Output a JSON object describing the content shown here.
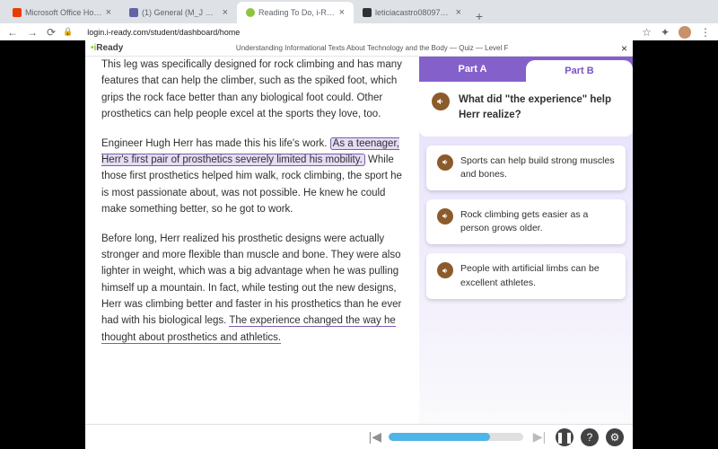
{
  "browser": {
    "tabs": [
      {
        "title": "Microsoft Office Home",
        "icon_color": "#eb3c00",
        "active": false
      },
      {
        "title": "(1) General (M_J Grade 6 Mat",
        "icon_color": "#6264a7",
        "active": false
      },
      {
        "title": "Reading To Do, i-Ready",
        "icon_color": "#8cc63f",
        "active": true
      },
      {
        "title": "leticiacastro080975 - brainly",
        "icon_color": "#303030",
        "active": false
      }
    ],
    "url": "login.i-ready.com/student/dashboard/home"
  },
  "header": {
    "logo_prefix": "i",
    "logo_dot": "•",
    "logo_suffix": "Ready",
    "title": "Understanding Informational Texts About Technology and the Body — Quiz — Level F"
  },
  "passage": {
    "p1_a": "This leg was specifically designed for rock climbing and has many features that can help the climber, such as the spiked foot, which grips the rock face better than any biological foot could. Other prosthetics can help people excel at the sports they love, too.",
    "p2_a": "Engineer Hugh Herr has made this his life's work. ",
    "p2_hl": "As a teenager, Herr's first pair of prosthetics severely limited his mobility.",
    "p2_b": " While those first prosthetics helped him walk, rock climbing, the sport he is most passionate about, was not possible. He knew he could make something better, so he got to work.",
    "p3_a": "Before long, Herr realized his prosthetic designs were actually stronger and more flexible than muscle and bone. They were also lighter in weight, which was a big advantage when he was pulling himself up a mountain. In fact, while testing out the new designs, Herr was climbing better and faster in his prosthetics than he ever had with his biological legs. ",
    "p3_ul": "The experience changed the way he thought about prosthetics and athletics."
  },
  "question": {
    "partA_label": "Part A",
    "partB_label": "Part B",
    "prompt": "What did \"the experience\" help Herr realize?",
    "answers": [
      "Sports can help build strong muscles and bones.",
      "Rock climbing gets easier as a person grows older.",
      "People with artificial limbs can be excellent athletes."
    ]
  },
  "footer": {
    "progress_pct": 75
  },
  "colors": {
    "purple": "#8460cb",
    "purple_light": "#e5dffc",
    "audio_btn": "#8c5a2b",
    "progress": "#4fb4e8"
  }
}
